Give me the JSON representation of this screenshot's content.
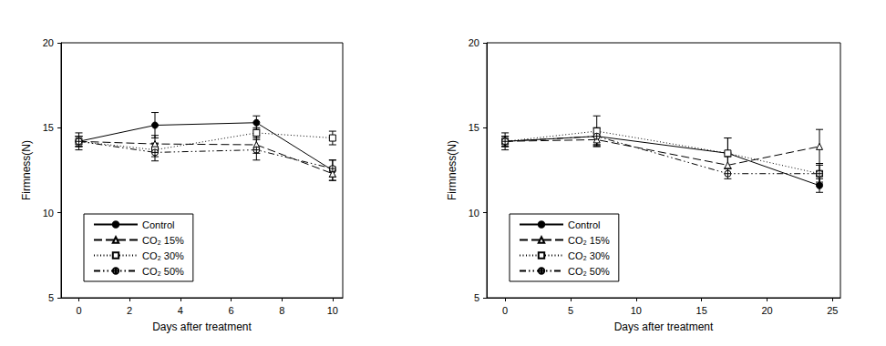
{
  "chart_data": [
    {
      "type": "line",
      "xlabel": "Days after treatment",
      "ylabel": "Firmness(N)",
      "x": [
        0,
        3,
        7,
        10
      ],
      "xlim": [
        -0.7,
        10.4
      ],
      "xticks": [
        0,
        2,
        4,
        6,
        8,
        10
      ],
      "ylim": [
        5,
        20
      ],
      "yticks": [
        5,
        10,
        15,
        20
      ],
      "legend": "lower left",
      "series": [
        {
          "name": "Control",
          "color": "#000000",
          "marker": "filled_circle",
          "line_style": "solid",
          "values": [
            14.2,
            15.15,
            15.3,
            12.5
          ],
          "errors": [
            0.5,
            0.75,
            0.4,
            0.6
          ]
        },
        {
          "name": "CO₂ 15%",
          "color": "#000000",
          "marker": "open_triangle",
          "line_style": "dashed",
          "values": [
            14.2,
            14.05,
            14.0,
            12.3
          ],
          "errors": [
            0.3,
            0.5,
            0.5,
            0.4
          ]
        },
        {
          "name": "CO₂ 30%",
          "color": "#000000",
          "marker": "open_square",
          "line_style": "dotted",
          "values": [
            14.2,
            13.7,
            14.7,
            14.4
          ],
          "errors": [
            0.3,
            0.4,
            0.3,
            0.4
          ]
        },
        {
          "name": "CO₂ 50%",
          "color": "#000000",
          "marker": "crossed_circle",
          "line_style": "dashdot",
          "values": [
            14.2,
            13.55,
            13.7,
            12.6
          ],
          "errors": [
            0.3,
            0.5,
            0.6,
            0.5
          ]
        }
      ]
    },
    {
      "type": "line",
      "xlabel": "Days after treatment",
      "ylabel": "Firmness(N)",
      "x": [
        0,
        7,
        17,
        24
      ],
      "xlim": [
        -1.4,
        25.6
      ],
      "xticks": [
        0,
        5,
        10,
        15,
        20,
        25
      ],
      "ylim": [
        5,
        20
      ],
      "yticks": [
        5,
        10,
        15,
        20
      ],
      "legend": "lower left",
      "series": [
        {
          "name": "Control",
          "color": "#000000",
          "marker": "filled_circle",
          "line_style": "solid",
          "values": [
            14.2,
            14.5,
            13.5,
            11.6
          ],
          "errors": [
            0.5,
            0.5,
            0.9,
            0.4
          ]
        },
        {
          "name": "CO₂ 15%",
          "color": "#000000",
          "marker": "open_triangle",
          "line_style": "dashed",
          "values": [
            14.2,
            14.3,
            12.8,
            13.9
          ],
          "errors": [
            0.3,
            0.4,
            0.5,
            1.0
          ]
        },
        {
          "name": "CO₂ 30%",
          "color": "#000000",
          "marker": "open_square",
          "line_style": "dotted",
          "values": [
            14.2,
            14.8,
            13.5,
            12.3
          ],
          "errors": [
            0.3,
            0.9,
            0.9,
            0.6
          ]
        },
        {
          "name": "CO₂ 50%",
          "color": "#000000",
          "marker": "crossed_circle",
          "line_style": "dashdot",
          "values": [
            14.2,
            14.5,
            12.3,
            12.3
          ],
          "errors": [
            0.3,
            0.5,
            0.3,
            0.5
          ]
        }
      ]
    }
  ]
}
